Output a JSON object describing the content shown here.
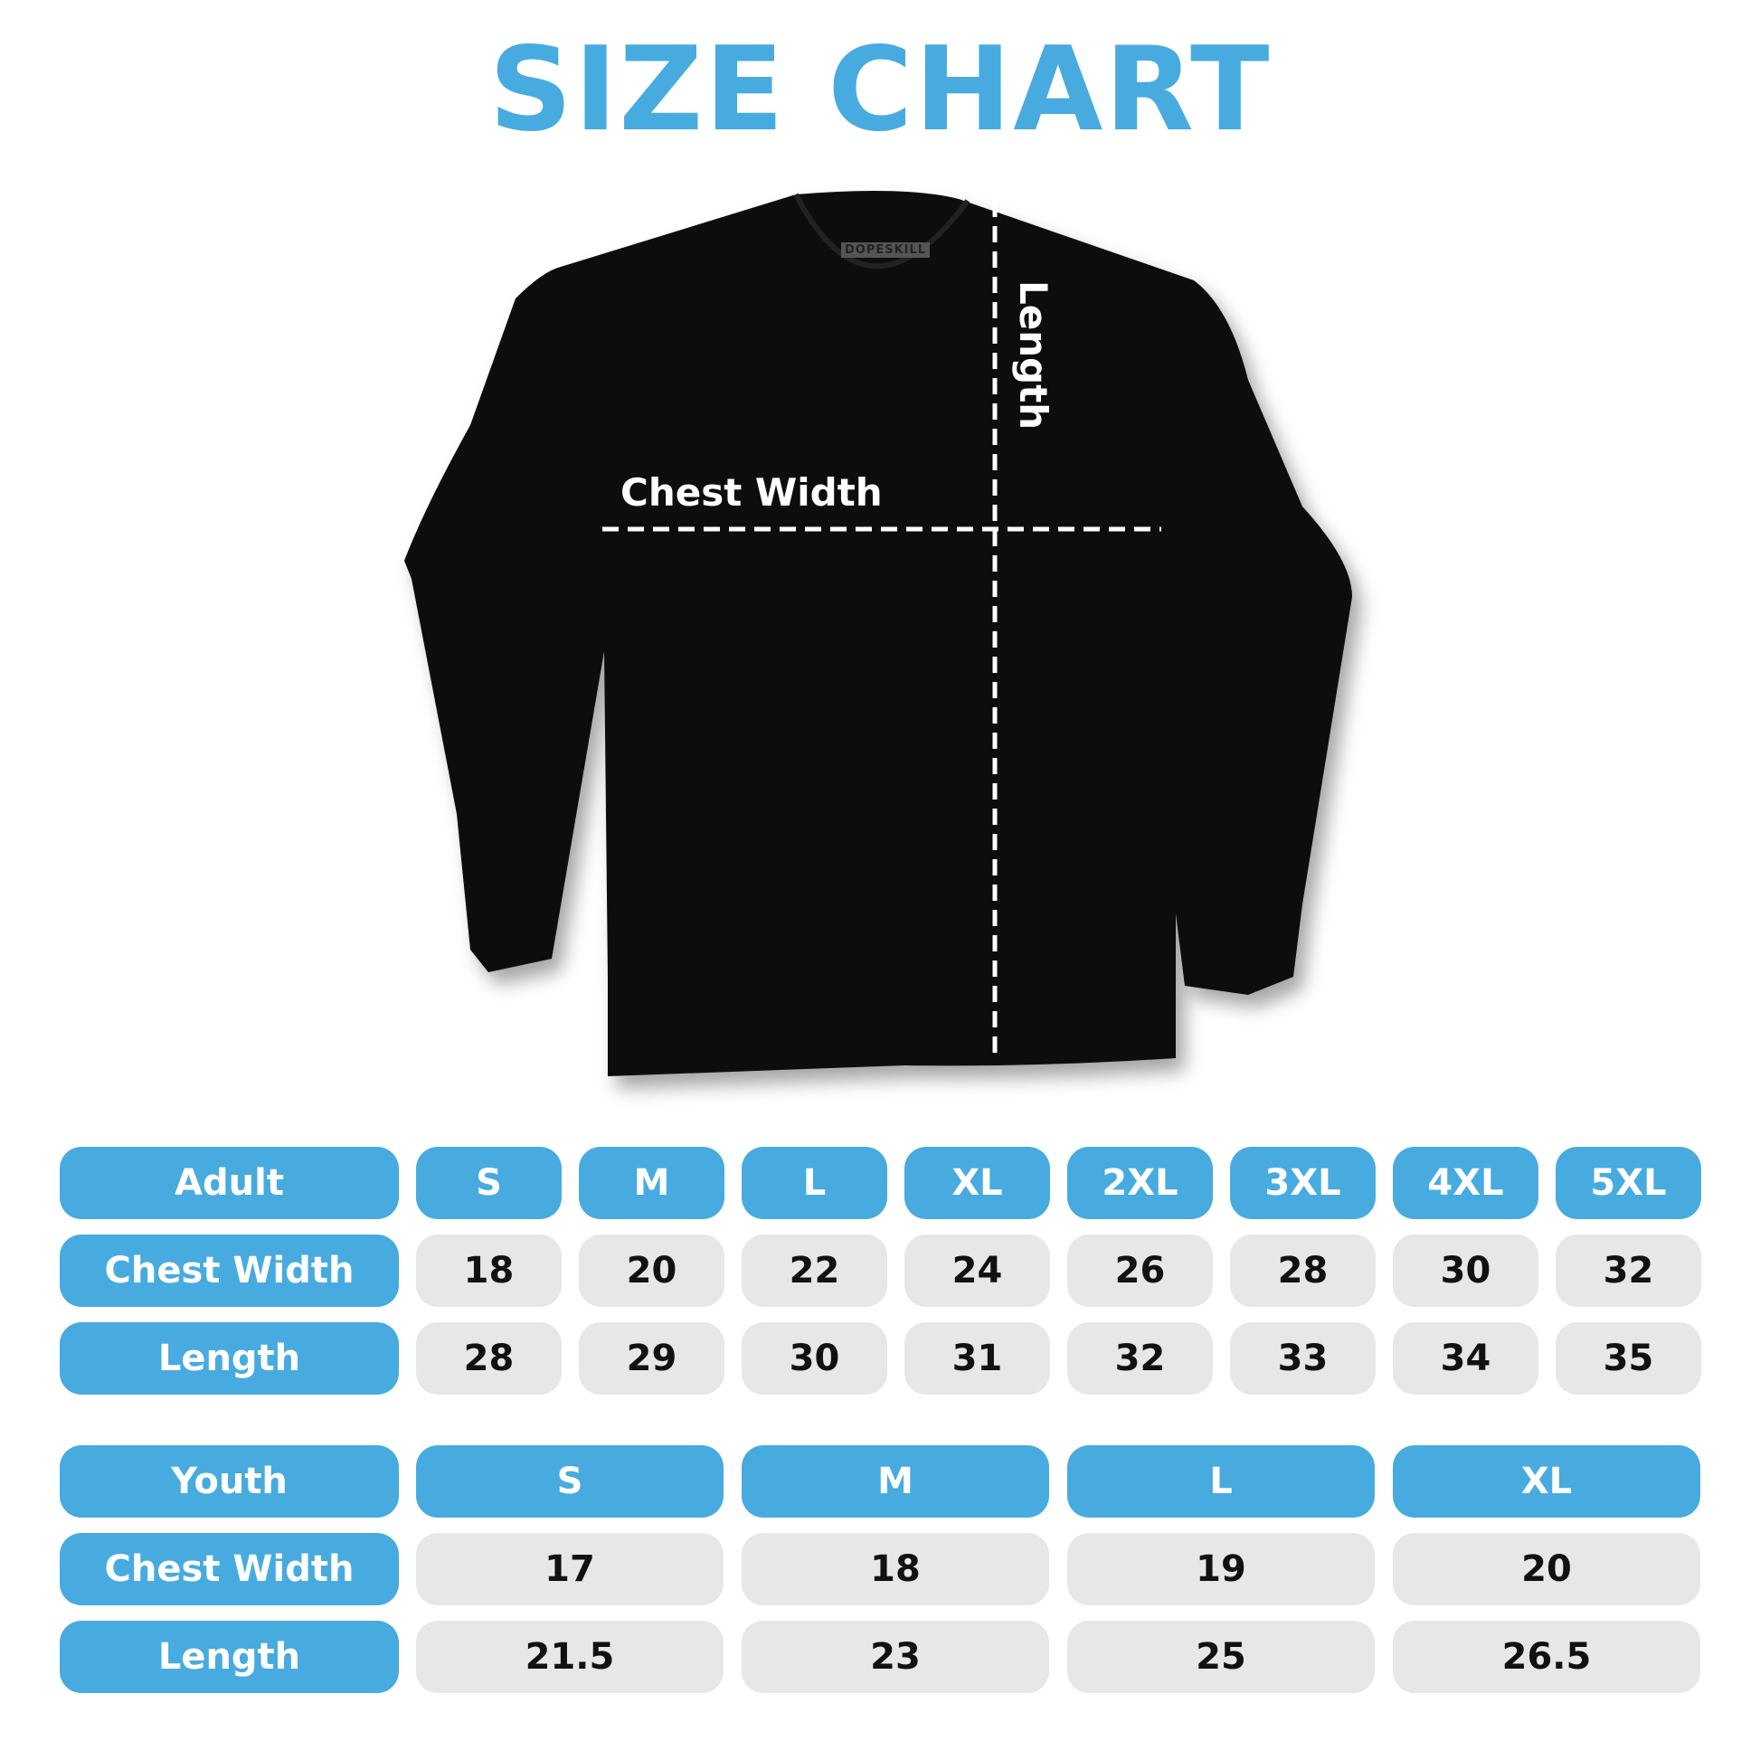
{
  "title": "SIZE CHART",
  "brand_tag": "DOPESKILL",
  "diagram": {
    "chest_label": "Chest Width",
    "length_label": "Length"
  },
  "colors": {
    "accent": "#47abe0",
    "cell": "#e6e7e8",
    "shirt": "#111111"
  },
  "adult": {
    "header": "Adult",
    "sizes": [
      "S",
      "M",
      "L",
      "XL",
      "2XL",
      "3XL",
      "4XL",
      "5XL"
    ],
    "rows": [
      {
        "label": "Chest Width",
        "values": [
          "18",
          "20",
          "22",
          "24",
          "26",
          "28",
          "30",
          "32"
        ]
      },
      {
        "label": "Length",
        "values": [
          "28",
          "29",
          "30",
          "31",
          "32",
          "33",
          "34",
          "35"
        ]
      }
    ]
  },
  "youth": {
    "header": "Youth",
    "sizes": [
      "S",
      "M",
      "L",
      "XL"
    ],
    "rows": [
      {
        "label": "Chest Width",
        "values": [
          "17",
          "18",
          "19",
          "20"
        ]
      },
      {
        "label": "Length",
        "values": [
          "21.5",
          "23",
          "25",
          "26.5"
        ]
      }
    ]
  }
}
